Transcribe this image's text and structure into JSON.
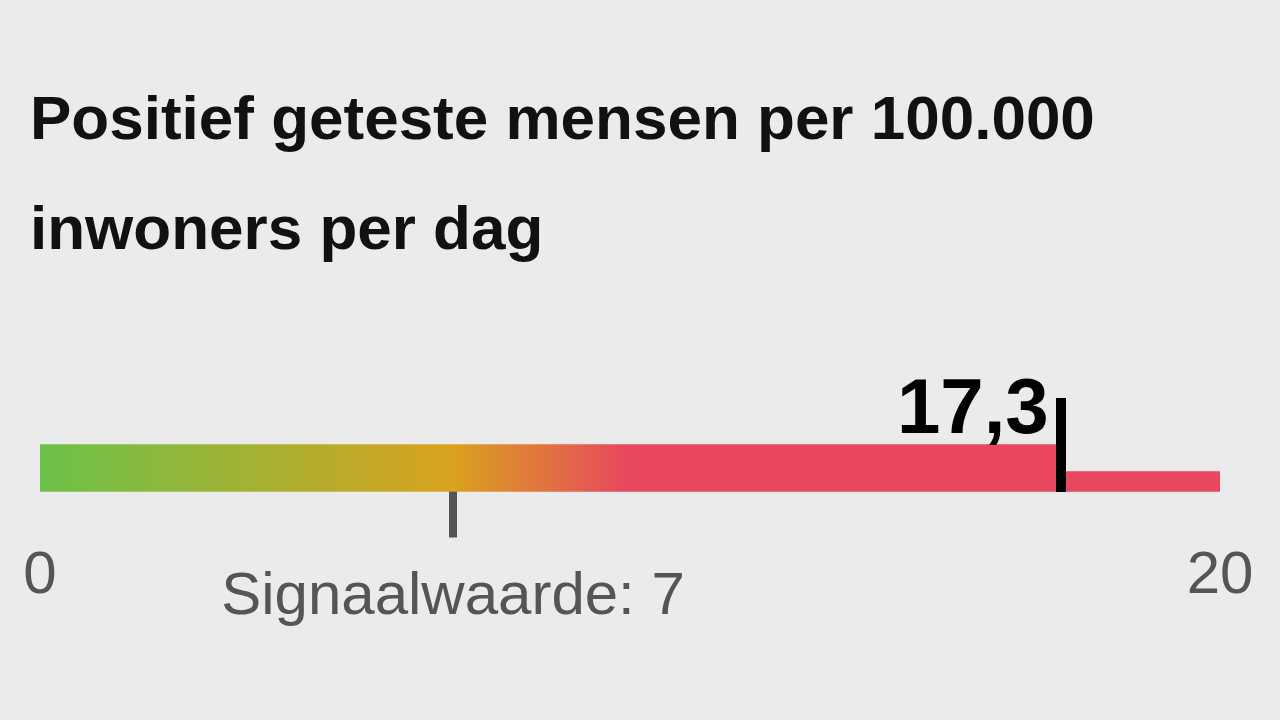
{
  "chart_data": {
    "type": "bar",
    "orientation": "horizontal",
    "stacked": true,
    "title": "Positief geteste mensen per 100.000 inwoners per dag",
    "categories": [
      null
    ],
    "series": [
      {
        "color": "#e8475f",
        "values": [
          17.3
        ],
        "value_labels": [
          "17,3"
        ]
      },
      {
        "color": "#e8475f",
        "values": [
          2.7
        ]
      }
    ],
    "xlim": [
      0,
      20
    ],
    "xticks": [
      0,
      20
    ],
    "ref_lines": [
      {
        "axis": "x",
        "value": 7,
        "label": "Signaalwaarde: 7",
        "color": "#555555"
      }
    ]
  }
}
